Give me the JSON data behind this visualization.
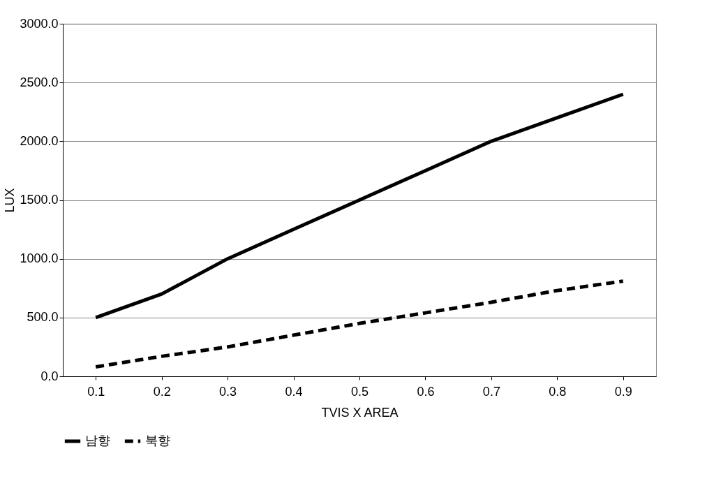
{
  "chart_data": {
    "type": "line",
    "xlabel": "TVIS X AREA",
    "ylabel": "LUX",
    "categories": [
      "0.1",
      "0.2",
      "0.3",
      "0.4",
      "0.5",
      "0.6",
      "0.7",
      "0.8",
      "0.9"
    ],
    "series": [
      {
        "name": "남향",
        "color": "#000000",
        "line_style": "solid",
        "values": [
          500,
          700,
          1000,
          1250,
          1500,
          1750,
          2000,
          2200,
          2400
        ]
      },
      {
        "name": "북향",
        "color": "#000000",
        "line_style": "dashed",
        "values": [
          80,
          170,
          250,
          350,
          450,
          540,
          630,
          730,
          810
        ]
      }
    ],
    "ylim": [
      0,
      3000
    ],
    "yticks": [
      {
        "value": 0,
        "label": "0.0"
      },
      {
        "value": 500,
        "label": "500.0"
      },
      {
        "value": 1000,
        "label": "1000.0"
      },
      {
        "value": 1500,
        "label": "1500.0"
      },
      {
        "value": 2000,
        "label": "2000.0"
      },
      {
        "value": 2500,
        "label": "2500.0"
      },
      {
        "value": 3000,
        "label": "3000.0"
      }
    ],
    "grid": "y",
    "legend": "bottom"
  }
}
